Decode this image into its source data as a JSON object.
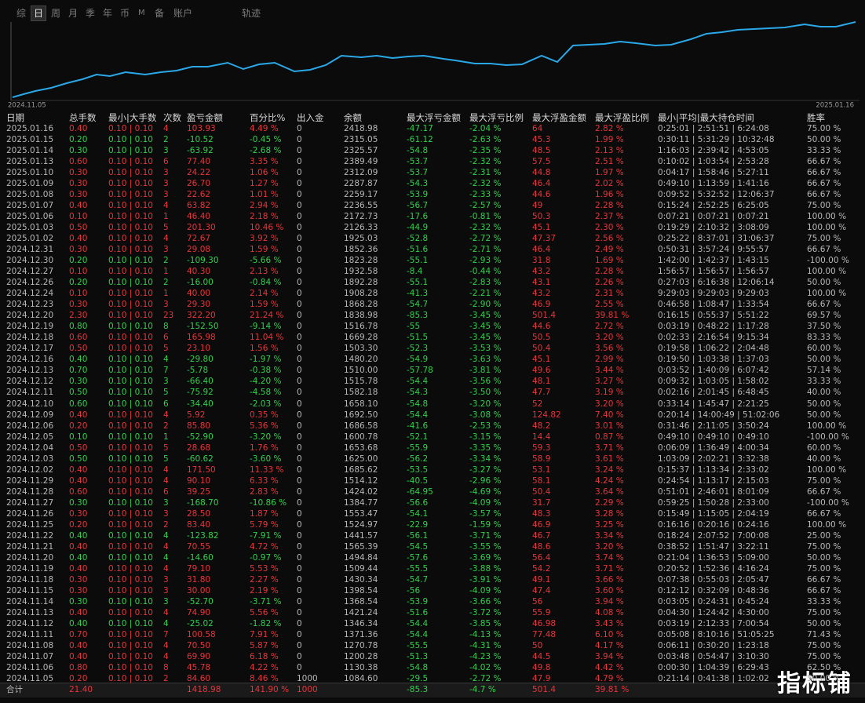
{
  "tabs": [
    "综",
    "日",
    "周",
    "月",
    "季",
    "年",
    "币",
    "M",
    "备",
    "账户"
  ],
  "track_label": "轨迹",
  "chart": {
    "start_date": "2024.11.05",
    "end_date": "2025.01.16"
  },
  "table": {
    "headers": [
      "日期",
      "总手数",
      "最小|大手数",
      "次数",
      "盈亏金额",
      "百分比%",
      "出入金",
      "余额",
      "最大浮亏金额",
      "最大浮亏比例",
      "最大浮盈金额",
      "最大浮盈比例",
      "最小|平均|最大持仓时间",
      "胜率"
    ],
    "rows": [
      [
        "2025.01.16",
        "0.40",
        "0.10 | 0.10",
        "4",
        "103.93",
        "4.49 %",
        "0",
        "2418.98",
        "-47.17",
        "-2.04 %",
        "64",
        "2.82 %",
        "0:25:01 | 2:51:51 | 6:24:08",
        "75.00 %"
      ],
      [
        "2025.01.15",
        "0.20",
        "0.10 | 0.10",
        "2",
        "-10.52",
        "-0.45 %",
        "0",
        "2315.05",
        "-61.12",
        "-2.63 %",
        "45.3",
        "1.99 %",
        "0:30:11 | 5:31:29 | 10:32:48",
        "50.00 %"
      ],
      [
        "2025.01.14",
        "0.30",
        "0.10 | 0.10",
        "3",
        "-63.92",
        "-2.68 %",
        "0",
        "2325.57",
        "-54.8",
        "-2.35 %",
        "48.5",
        "2.13 %",
        "1:16:03 | 2:39:42 | 4:53:05",
        "33.33 %"
      ],
      [
        "2025.01.13",
        "0.60",
        "0.10 | 0.10",
        "6",
        "77.40",
        "3.35 %",
        "0",
        "2389.49",
        "-53.7",
        "-2.32 %",
        "57.5",
        "2.51 %",
        "0:10:02 | 1:03:54 | 2:53:28",
        "66.67 %"
      ],
      [
        "2025.01.10",
        "0.30",
        "0.10 | 0.10",
        "3",
        "24.22",
        "1.06 %",
        "0",
        "2312.09",
        "-53.7",
        "-2.31 %",
        "44.8",
        "1.97 %",
        "0:04:17 | 1:58:46 | 5:27:11",
        "66.67 %"
      ],
      [
        "2025.01.09",
        "0.30",
        "0.10 | 0.10",
        "3",
        "26.70",
        "1.27 %",
        "0",
        "2287.87",
        "-54.3",
        "-2.32 %",
        "46.4",
        "2.02 %",
        "0:49:10 | 1:13:59 | 1:41:16",
        "66.67 %"
      ],
      [
        "2025.01.08",
        "0.30",
        "0.10 | 0.10",
        "3",
        "22.62",
        "1.01 %",
        "0",
        "2259.17",
        "-53.9",
        "-2.33 %",
        "44.6",
        "1.96 %",
        "0:09:52 | 5:32:52 | 12:06:37",
        "66.67 %"
      ],
      [
        "2025.01.07",
        "0.40",
        "0.10 | 0.10",
        "4",
        "63.82",
        "2.94 %",
        "0",
        "2236.55",
        "-56.7",
        "-2.57 %",
        "49",
        "2.28 %",
        "0:15:24 | 2:52:25 | 6:25:05",
        "75.00 %"
      ],
      [
        "2025.01.06",
        "0.10",
        "0.10 | 0.10",
        "1",
        "46.40",
        "2.18 %",
        "0",
        "2172.73",
        "-17.6",
        "-0.81 %",
        "50.3",
        "2.37 %",
        "0:07:21 | 0:07:21 | 0:07:21",
        "100.00 %"
      ],
      [
        "2025.01.03",
        "0.50",
        "0.10 | 0.10",
        "5",
        "201.30",
        "10.46 %",
        "0",
        "2126.33",
        "-44.9",
        "-2.32 %",
        "45.1",
        "2.30 %",
        "0:19:29 | 2:10:32 | 3:08:09",
        "100.00 %"
      ],
      [
        "2025.01.02",
        "0.40",
        "0.10 | 0.10",
        "4",
        "72.67",
        "3.92 %",
        "0",
        "1925.03",
        "-52.8",
        "-2.72 %",
        "47.37",
        "2.56 %",
        "0:25:22 | 8:37:01 | 31:06:37",
        "75.00 %"
      ],
      [
        "2024.12.31",
        "0.30",
        "0.10 | 0.10",
        "3",
        "29.08",
        "1.59 %",
        "0",
        "1852.36",
        "-51.6",
        "-2.71 %",
        "46.4",
        "2.49 %",
        "0:50:31 | 3:57:24 | 9:55:57",
        "66.67 %"
      ],
      [
        "2024.12.30",
        "0.20",
        "0.10 | 0.10",
        "2",
        "-109.30",
        "-5.66 %",
        "0",
        "1823.28",
        "-55.1",
        "-2.93 %",
        "31.8",
        "1.69 %",
        "1:42:00 | 1:42:37 | 1:43:15",
        "-100.00 %"
      ],
      [
        "2024.12.27",
        "0.10",
        "0.10 | 0.10",
        "1",
        "40.30",
        "2.13 %",
        "0",
        "1932.58",
        "-8.4",
        "-0.44 %",
        "43.2",
        "2.28 %",
        "1:56:57 | 1:56:57 | 1:56:57",
        "100.00 %"
      ],
      [
        "2024.12.26",
        "0.20",
        "0.10 | 0.10",
        "2",
        "-16.00",
        "-0.84 %",
        "0",
        "1892.28",
        "-55.1",
        "-2.83 %",
        "43.1",
        "2.26 %",
        "0:27:03 | 6:16:38 | 12:06:14",
        "50.00 %"
      ],
      [
        "2024.12.24",
        "0.10",
        "0.10 | 0.10",
        "1",
        "40.00",
        "2.14 %",
        "0",
        "1908.28",
        "-41.3",
        "-2.21 %",
        "43.2",
        "2.31 %",
        "9:29:03 | 9:29:03 | 9:29:03",
        "100.00 %"
      ],
      [
        "2024.12.23",
        "0.30",
        "0.10 | 0.10",
        "3",
        "29.30",
        "1.59 %",
        "0",
        "1868.28",
        "-54.7",
        "-2.90 %",
        "46.9",
        "2.55 %",
        "0:46:58 | 1:08:47 | 1:33:54",
        "66.67 %"
      ],
      [
        "2024.12.20",
        "2.30",
        "0.10 | 0.10",
        "23",
        "322.20",
        "21.24 %",
        "0",
        "1838.98",
        "-85.3",
        "-3.45 %",
        "501.4",
        "39.81 %",
        "0:16:15 | 0:55:37 | 5:51:22",
        "69.57 %"
      ],
      [
        "2024.12.19",
        "0.80",
        "0.10 | 0.10",
        "8",
        "-152.50",
        "-9.14 %",
        "0",
        "1516.78",
        "-55",
        "-3.45 %",
        "44.6",
        "2.72 %",
        "0:03:19 | 0:48:22 | 1:17:28",
        "37.50 %"
      ],
      [
        "2024.12.18",
        "0.60",
        "0.10 | 0.10",
        "6",
        "165.98",
        "11.04 %",
        "0",
        "1669.28",
        "-51.5",
        "-3.45 %",
        "50.5",
        "3.20 %",
        "0:02:33 | 2:16:54 | 9:15:34",
        "83.33 %"
      ],
      [
        "2024.12.17",
        "0.50",
        "0.10 | 0.10",
        "5",
        "23.10",
        "1.56 %",
        "0",
        "1503.30",
        "-52.3",
        "-3.53 %",
        "50.4",
        "3.56 %",
        "0:19:58 | 1:06:22 | 2:04:48",
        "60.00 %"
      ],
      [
        "2024.12.16",
        "0.40",
        "0.10 | 0.10",
        "4",
        "-29.80",
        "-1.97 %",
        "0",
        "1480.20",
        "-54.9",
        "-3.63 %",
        "45.1",
        "2.99 %",
        "0:19:50 | 1:03:38 | 1:37:03",
        "50.00 %"
      ],
      [
        "2024.12.13",
        "0.70",
        "0.10 | 0.10",
        "7",
        "-5.78",
        "-0.38 %",
        "0",
        "1510.00",
        "-57.78",
        "-3.81 %",
        "49.6",
        "3.44 %",
        "0:03:52 | 1:40:09 | 6:07:42",
        "57.14 %"
      ],
      [
        "2024.12.12",
        "0.30",
        "0.10 | 0.10",
        "3",
        "-66.40",
        "-4.20 %",
        "0",
        "1515.78",
        "-54.4",
        "-3.56 %",
        "48.1",
        "3.27 %",
        "0:09:32 | 1:03:05 | 1:58:02",
        "33.33 %"
      ],
      [
        "2024.12.11",
        "0.50",
        "0.10 | 0.10",
        "5",
        "-75.92",
        "-4.58 %",
        "0",
        "1582.18",
        "-54.3",
        "-3.50 %",
        "47.7",
        "3.19 %",
        "0:02:16 | 2:01:45 | 6:48:45",
        "40.00 %"
      ],
      [
        "2024.12.10",
        "0.60",
        "0.10 | 0.10",
        "6",
        "-34.40",
        "-2.03 %",
        "0",
        "1658.10",
        "-54.8",
        "-3.20 %",
        "52",
        "3.20 %",
        "0:33:14 | 1:45:47 | 2:21:25",
        "50.00 %"
      ],
      [
        "2024.12.09",
        "0.40",
        "0.10 | 0.10",
        "4",
        "5.92",
        "0.35 %",
        "0",
        "1692.50",
        "-54.4",
        "-3.08 %",
        "124.82",
        "7.40 %",
        "0:20:14 | 14:00:49 | 51:02:06",
        "50.00 %"
      ],
      [
        "2024.12.06",
        "0.20",
        "0.10 | 0.10",
        "2",
        "85.80",
        "5.36 %",
        "0",
        "1686.58",
        "-41.6",
        "-2.53 %",
        "48.2",
        "3.01 %",
        "0:31:46 | 2:11:05 | 3:50:24",
        "100.00 %"
      ],
      [
        "2024.12.05",
        "0.10",
        "0.10 | 0.10",
        "1",
        "-52.90",
        "-3.20 %",
        "0",
        "1600.78",
        "-52.1",
        "-3.15 %",
        "14.4",
        "0.87 %",
        "0:49:10 | 0:49:10 | 0:49:10",
        "-100.00 %"
      ],
      [
        "2024.12.04",
        "0.50",
        "0.10 | 0.10",
        "5",
        "28.68",
        "1.76 %",
        "0",
        "1653.68",
        "-55.9",
        "-3.35 %",
        "59.3",
        "3.71 %",
        "0:06:09 | 1:36:49 | 4:00:34",
        "60.00 %"
      ],
      [
        "2024.12.03",
        "0.50",
        "0.10 | 0.10",
        "5",
        "-60.62",
        "-3.60 %",
        "0",
        "1625.00",
        "-56.2",
        "-3.34 %",
        "58.9",
        "3.61 %",
        "1:03:09 | 2:02:21 | 3:32:38",
        "40.00 %"
      ],
      [
        "2024.12.02",
        "0.40",
        "0.10 | 0.10",
        "4",
        "171.50",
        "11.33 %",
        "0",
        "1685.62",
        "-53.5",
        "-3.27 %",
        "53.1",
        "3.24 %",
        "0:15:37 | 1:13:34 | 2:33:02",
        "100.00 %"
      ],
      [
        "2024.11.29",
        "0.40",
        "0.10 | 0.10",
        "4",
        "90.10",
        "6.33 %",
        "0",
        "1514.12",
        "-40.5",
        "-2.96 %",
        "58.1",
        "4.24 %",
        "0:24:54 | 1:13:17 | 2:15:03",
        "75.00 %"
      ],
      [
        "2024.11.28",
        "0.60",
        "0.10 | 0.10",
        "6",
        "39.25",
        "2.83 %",
        "0",
        "1424.02",
        "-64.95",
        "-4.69 %",
        "50.4",
        "3.64 %",
        "0:51:01 | 2:46:01 | 8:01:09",
        "66.67 %"
      ],
      [
        "2024.11.27",
        "0.30",
        "0.10 | 0.10",
        "3",
        "-168.70",
        "-10.86 %",
        "0",
        "1384.77",
        "-56.6",
        "-4.09 %",
        "31.7",
        "2.29 %",
        "0:59:25 | 1:50:28 | 2:33:00",
        "-100.00 %"
      ],
      [
        "2024.11.26",
        "0.30",
        "0.10 | 0.10",
        "3",
        "28.50",
        "1.87 %",
        "0",
        "1553.47",
        "-54.1",
        "-3.57 %",
        "48.3",
        "3.28 %",
        "0:15:49 | 1:15:05 | 2:04:19",
        "66.67 %"
      ],
      [
        "2024.11.25",
        "0.20",
        "0.10 | 0.10",
        "2",
        "83.40",
        "5.79 %",
        "0",
        "1524.97",
        "-22.9",
        "-1.59 %",
        "46.9",
        "3.25 %",
        "0:16:16 | 0:20:16 | 0:24:16",
        "100.00 %"
      ],
      [
        "2024.11.22",
        "0.40",
        "0.10 | 0.10",
        "4",
        "-123.82",
        "-7.91 %",
        "0",
        "1441.57",
        "-56.1",
        "-3.71 %",
        "46.7",
        "3.34 %",
        "0:18:24 | 2:07:52 | 7:00:08",
        "25.00 %"
      ],
      [
        "2024.11.21",
        "0.40",
        "0.10 | 0.10",
        "4",
        "70.55",
        "4.72 %",
        "0",
        "1565.39",
        "-54.5",
        "-3.55 %",
        "48.6",
        "3.20 %",
        "0:38:52 | 1:51:47 | 3:22:11",
        "75.00 %"
      ],
      [
        "2024.11.20",
        "0.40",
        "0.10 | 0.10",
        "4",
        "-14.60",
        "-0.97 %",
        "0",
        "1494.84",
        "-57.6",
        "-3.69 %",
        "56.4",
        "3.74 %",
        "0:21:04 | 1:36:53 | 5:09:00",
        "50.00 %"
      ],
      [
        "2024.11.19",
        "0.40",
        "0.10 | 0.10",
        "4",
        "79.10",
        "5.53 %",
        "0",
        "1509.44",
        "-55.5",
        "-3.88 %",
        "54.2",
        "3.71 %",
        "0:20:52 | 1:52:36 | 4:16:24",
        "75.00 %"
      ],
      [
        "2024.11.18",
        "0.30",
        "0.10 | 0.10",
        "3",
        "31.80",
        "2.27 %",
        "0",
        "1430.34",
        "-54.7",
        "-3.91 %",
        "49.1",
        "3.66 %",
        "0:07:38 | 0:55:03 | 2:05:47",
        "66.67 %"
      ],
      [
        "2024.11.15",
        "0.30",
        "0.10 | 0.10",
        "3",
        "30.00",
        "2.19 %",
        "0",
        "1398.54",
        "-56",
        "-4.09 %",
        "47.4",
        "3.60 %",
        "0:12:12 | 0:32:09 | 0:48:36",
        "66.67 %"
      ],
      [
        "2024.11.14",
        "0.30",
        "0.10 | 0.10",
        "3",
        "-52.70",
        "-3.71 %",
        "0",
        "1368.54",
        "-53.9",
        "-3.66 %",
        "56",
        "3.94 %",
        "0:03:05 | 0:24:31 | 0:45:24",
        "33.33 %"
      ],
      [
        "2024.11.13",
        "0.40",
        "0.10 | 0.10",
        "4",
        "74.90",
        "5.56 %",
        "0",
        "1421.24",
        "-51.6",
        "-3.72 %",
        "55.9",
        "4.08 %",
        "0:04:30 | 1:24:42 | 4:30:00",
        "75.00 %"
      ],
      [
        "2024.11.12",
        "0.40",
        "0.10 | 0.10",
        "4",
        "-25.02",
        "-1.82 %",
        "0",
        "1346.34",
        "-54.4",
        "-3.85 %",
        "46.98",
        "3.43 %",
        "0:03:19 | 2:12:33 | 7:00:54",
        "50.00 %"
      ],
      [
        "2024.11.11",
        "0.70",
        "0.10 | 0.10",
        "7",
        "100.58",
        "7.91 %",
        "0",
        "1371.36",
        "-54.4",
        "-4.13 %",
        "77.48",
        "6.10 %",
        "0:05:08 | 8:10:16 | 51:05:25",
        "71.43 %"
      ],
      [
        "2024.11.08",
        "0.40",
        "0.10 | 0.10",
        "4",
        "70.50",
        "5.87 %",
        "0",
        "1270.78",
        "-55.5",
        "-4.31 %",
        "50",
        "4.17 %",
        "0:06:11 | 0:30:20 | 1:23:18",
        "75.00 %"
      ],
      [
        "2024.11.07",
        "0.40",
        "0.10 | 0.10",
        "4",
        "69.90",
        "6.18 %",
        "0",
        "1200.28",
        "-51.3",
        "-4.23 %",
        "44.5",
        "3.94 %",
        "0:03:48 | 0:54:47 | 3:10:30",
        "75.00 %"
      ],
      [
        "2024.11.06",
        "0.80",
        "0.10 | 0.10",
        "8",
        "45.78",
        "4.22 %",
        "0",
        "1130.38",
        "-54.8",
        "-4.02 %",
        "49.8",
        "4.42 %",
        "0:00:30 | 1:04:39 | 6:29:43",
        "62.50 %"
      ],
      [
        "2024.11.05",
        "0.20",
        "0.10 | 0.10",
        "2",
        "84.60",
        "8.46 %",
        "1000",
        "1084.60",
        "-29.5",
        "-2.72 %",
        "47.9",
        "4.79 %",
        "0:21:14 | 0:41:38 | 1:02:02",
        "50.00 %"
      ]
    ],
    "total": {
      "label": "合计",
      "lots": "21.40",
      "pnl": "1418.98",
      "pct": "141.90 %",
      "deposit": "1000",
      "max_loss": "-85.3",
      "max_loss_pct": "-4.7 %",
      "max_profit": "501.4",
      "max_profit_pct": "39.81 %"
    }
  },
  "watermark": "指标铺"
}
